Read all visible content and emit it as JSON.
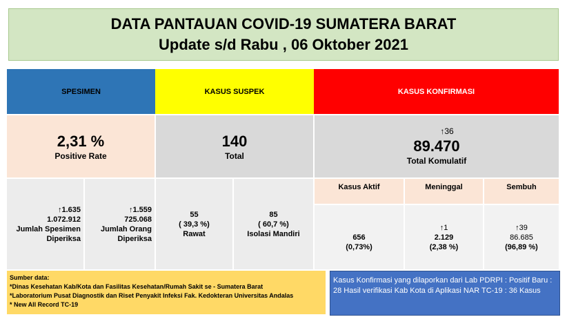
{
  "header": {
    "title": "DATA PANTAUAN COVID-19 SUMATERA BARAT",
    "subtitle": "Update s/d Rabu , 06 Oktober 2021"
  },
  "spesimen": {
    "label": "SPESIMEN",
    "rate": "2,31 %",
    "rate_label": "Positive Rate",
    "items": [
      {
        "change": "↑1.635",
        "value": "1.072.912",
        "label": "Jumlah Spesimen Diperiksa"
      },
      {
        "change": "↑1.559",
        "value": "725.068",
        "label": "Jumlah Orang Diperiksa"
      }
    ]
  },
  "suspek": {
    "label": "KASUS SUSPEK",
    "total": "140",
    "total_label": "Total",
    "items": [
      {
        "value": "55",
        "percent": "( 39,3 %)",
        "label": "Rawat"
      },
      {
        "value": "85",
        "percent": "( 60,7 %)",
        "label": "Isolasi Mandiri"
      }
    ]
  },
  "konfirmasi": {
    "label": "KASUS KONFIRMASI",
    "change": "↑36",
    "total": "89.470",
    "total_label": "Total Komulatif",
    "items": [
      {
        "label": "Kasus Aktif",
        "value": "656",
        "percent": "(0,73%)"
      },
      {
        "label": "Meninggal",
        "change": "↑1",
        "value": "2.129",
        "percent": "(2,38 %)"
      },
      {
        "label": "Sembuh",
        "change": "↑39",
        "value": "86.685",
        "percent": "(96,89 %)"
      }
    ]
  },
  "sources": {
    "title": "Sumber data:",
    "lines": [
      "*Dinas Kesehatan Kab/Kota  dan Fasilitas Kesehatan/Rumah Sakit se - Sumatera Barat",
      "*Laboratorium  Pusat Diagnostik dan Riset  Penyakit Infeksi Fak. Kedokteran Universitas Andalas",
      "* New All Record TC-19"
    ]
  },
  "note": "Kasus Konfirmasi yang dilaporkan dari Lab PDRPI : Positif Baru :  28 Hasil verifikasi Kab Kota di Aplikasi NAR TC-19 : 36 Kasus"
}
